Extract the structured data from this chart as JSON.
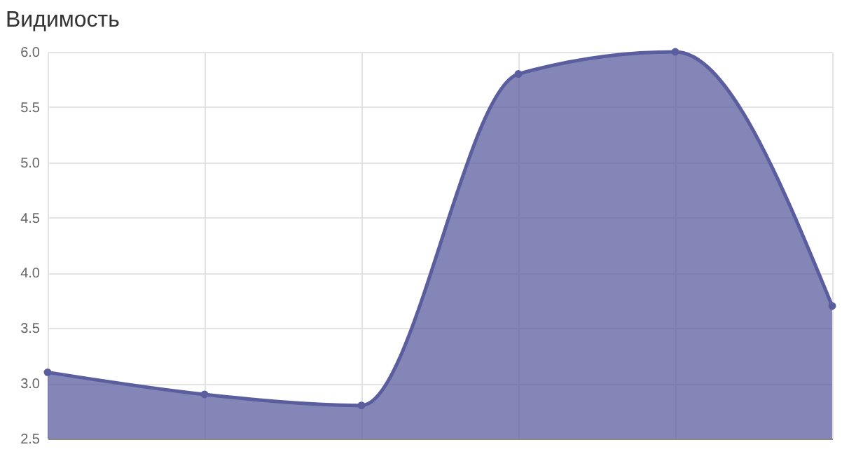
{
  "chart_data": {
    "type": "area",
    "title": "Видимость",
    "categories": [
      null,
      null,
      null,
      null,
      null,
      null
    ],
    "series": [
      {
        "color": "#5a5e9e",
        "values": [
          3.1,
          2.9,
          2.8,
          5.8,
          6.0,
          3.7
        ]
      }
    ],
    "ylim": [
      2.5,
      6.0
    ],
    "yticks": [
      {
        "value": 2.5,
        "label": "2.5"
      },
      {
        "value": 3,
        "label": "3.0"
      },
      {
        "value": 3.5,
        "label": "3.5"
      },
      {
        "value": 4,
        "label": "4.0"
      },
      {
        "value": 4.5,
        "label": "4.5"
      },
      {
        "value": 5,
        "label": "5.0"
      },
      {
        "value": 5.5,
        "label": "5.5"
      },
      {
        "value": 6,
        "label": "6.0"
      }
    ],
    "grid": true,
    "marker": "circle",
    "line_style": "solid"
  }
}
